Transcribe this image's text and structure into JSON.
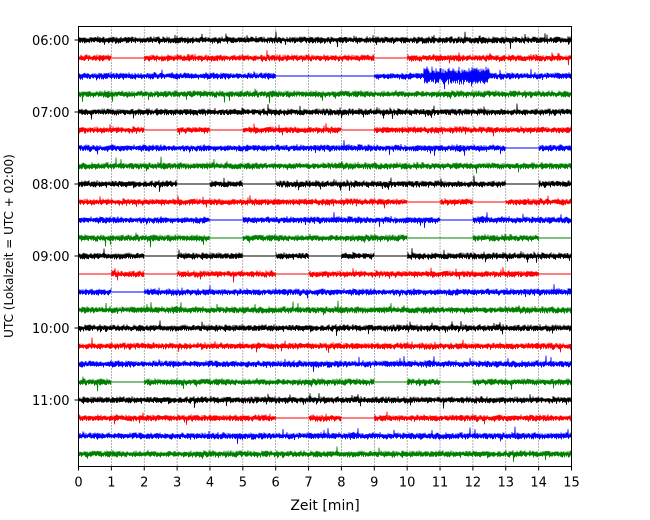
{
  "chart_data": {
    "type": "line",
    "title": "",
    "xlabel": "Zeit  [min]",
    "ylabel": "UTC (Lokalzeit = UTC + 02:00)",
    "xlim": [
      0,
      15
    ],
    "x_ticks": [
      "0",
      "1",
      "2",
      "3",
      "4",
      "5",
      "6",
      "7",
      "8",
      "9",
      "10",
      "11",
      "12",
      "13",
      "14",
      "15"
    ],
    "y_tick_labels": [
      "06:00",
      "07:00",
      "08:00",
      "09:00",
      "10:00",
      "11:00"
    ],
    "grid": "vertical dotted at each minute",
    "legend": "none",
    "trace_colors": [
      "#000000",
      "#ff0000",
      "#0000ff",
      "#008000"
    ],
    "traces": [
      {
        "start": "06:00",
        "color": "#000000",
        "gaps": []
      },
      {
        "start": "06:15",
        "color": "#ff0000",
        "gaps": [
          [
            1,
            2
          ],
          [
            9,
            10
          ]
        ]
      },
      {
        "start": "06:30",
        "color": "#0000ff",
        "gaps": [
          [
            6,
            9
          ]
        ],
        "bursts": [
          [
            10.5,
            12.5
          ]
        ]
      },
      {
        "start": "06:45",
        "color": "#008000",
        "gaps": []
      },
      {
        "start": "07:00",
        "color": "#000000",
        "gaps": []
      },
      {
        "start": "07:15",
        "color": "#ff0000",
        "gaps": [
          [
            2,
            3
          ],
          [
            4,
            5
          ],
          [
            8,
            9
          ]
        ]
      },
      {
        "start": "07:30",
        "color": "#0000ff",
        "gaps": [
          [
            13,
            14
          ]
        ]
      },
      {
        "start": "07:45",
        "color": "#008000",
        "gaps": []
      },
      {
        "start": "08:00",
        "color": "#000000",
        "gaps": [
          [
            3,
            4
          ],
          [
            5,
            6
          ],
          [
            13,
            14
          ]
        ]
      },
      {
        "start": "08:15",
        "color": "#ff0000",
        "gaps": [
          [
            10,
            11
          ],
          [
            12,
            13
          ]
        ]
      },
      {
        "start": "08:30",
        "color": "#0000ff",
        "gaps": [
          [
            4,
            5
          ],
          [
            11,
            12
          ]
        ]
      },
      {
        "start": "08:45",
        "color": "#008000",
        "gaps": [
          [
            4,
            5
          ],
          [
            10,
            12
          ],
          [
            14,
            15
          ]
        ]
      },
      {
        "start": "09:00",
        "color": "#000000",
        "gaps": [
          [
            2,
            3
          ],
          [
            5,
            6
          ],
          [
            7,
            8
          ],
          [
            9,
            10
          ]
        ]
      },
      {
        "start": "09:15",
        "color": "#ff0000",
        "gaps": [
          [
            0,
            1
          ],
          [
            2,
            3
          ],
          [
            6,
            7
          ],
          [
            14,
            15
          ]
        ]
      },
      {
        "start": "09:30",
        "color": "#0000ff",
        "gaps": [
          [
            1,
            2
          ]
        ]
      },
      {
        "start": "09:45",
        "color": "#008000",
        "gaps": []
      },
      {
        "start": "10:00",
        "color": "#000000",
        "gaps": []
      },
      {
        "start": "10:15",
        "color": "#ff0000",
        "gaps": []
      },
      {
        "start": "10:30",
        "color": "#0000ff",
        "gaps": []
      },
      {
        "start": "10:45",
        "color": "#008000",
        "gaps": [
          [
            1,
            2
          ],
          [
            9,
            10
          ],
          [
            11,
            12
          ]
        ]
      },
      {
        "start": "11:00",
        "color": "#000000",
        "gaps": []
      },
      {
        "start": "11:15",
        "color": "#ff0000",
        "gaps": [
          [
            6,
            7
          ],
          [
            8,
            9
          ]
        ]
      },
      {
        "start": "11:30",
        "color": "#0000ff",
        "gaps": []
      },
      {
        "start": "11:45",
        "color": "#008000",
        "gaps": []
      }
    ]
  }
}
